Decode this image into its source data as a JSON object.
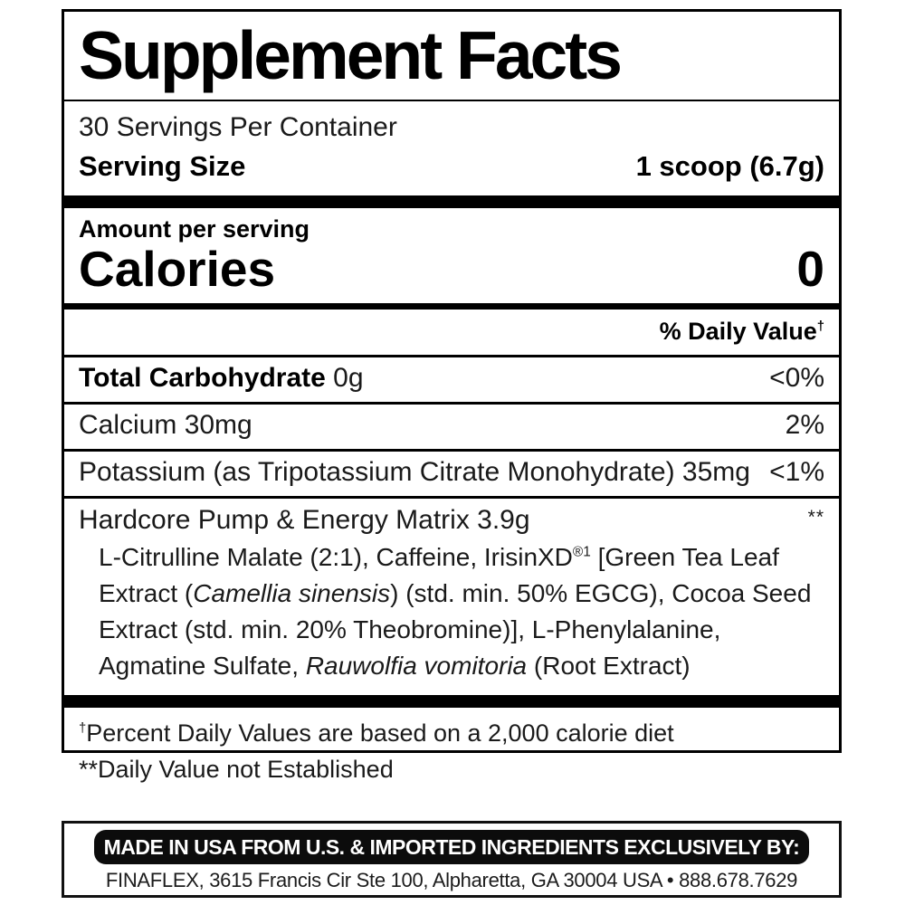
{
  "colors": {
    "ink": "#000000",
    "paper": "#ffffff"
  },
  "label": {
    "title": "Supplement Facts",
    "servings_per_container": "30 Servings Per Container",
    "serving_size": {
      "label": "Serving Size",
      "value": "1 scoop (6.7g)"
    },
    "amount_per_serving": "Amount per serving",
    "calories": {
      "label": "Calories",
      "value": "0"
    },
    "daily_value_header_segments": [
      {
        "text": "% Daily Value",
        "style": "normal"
      },
      {
        "text": "†",
        "style": "sup"
      }
    ],
    "rows": [
      {
        "name_bold": "Total Carbohydrate",
        "name_rest": " 0g",
        "value": "<0%"
      },
      {
        "name_bold": "",
        "name_rest": "Calcium 30mg",
        "value": "2%"
      },
      {
        "name_bold": "",
        "name_rest": "Potassium (as Tripotassium Citrate Monohydrate) 35mg",
        "value": "<1%"
      }
    ],
    "matrix": {
      "header": "Hardcore Pump & Energy Matrix 3.9g",
      "daily_value": "**",
      "ingredients_segments": [
        {
          "text": "L-Citrulline Malate (2:1), Caffeine, IrisinXD",
          "style": "normal"
        },
        {
          "text": "®1",
          "style": "sup"
        },
        {
          "text": " [Green Tea Leaf Extract (",
          "style": "normal"
        },
        {
          "text": "Camellia sinensis",
          "style": "italic"
        },
        {
          "text": ") (std. min. 50% EGCG), Cocoa Seed Extract (std. min. 20% Theobromine)], L-Phenylalanine, Agmatine Sulfate, ",
          "style": "normal"
        },
        {
          "text": "Rauwolfia vomitoria",
          "style": "italic"
        },
        {
          "text": " (Root Extract)",
          "style": "normal"
        }
      ]
    },
    "footnotes": {
      "percent_dv_segments": [
        {
          "text": "†",
          "style": "sup"
        },
        {
          "text": "Percent Daily Values are based on a 2,000 calorie diet",
          "style": "normal"
        }
      ],
      "not_established": "**Daily Value not Established"
    }
  },
  "footer": {
    "made_in": "MADE IN USA FROM U.S. & IMPORTED INGREDIENTS EXCLUSIVELY BY:",
    "address": "FINAFLEX, 3615 Francis Cir Ste 100, Alpharetta, GA 30004 USA • 888.678.7629"
  }
}
